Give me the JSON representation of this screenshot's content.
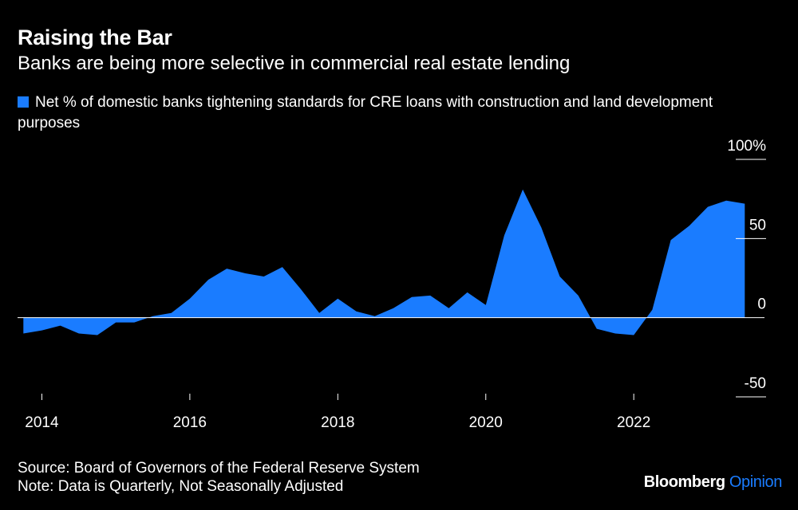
{
  "title": "Raising the Bar",
  "subtitle": "Banks are being more selective in commercial real estate lending",
  "legend": {
    "label": "Net % of domestic banks tightening standards for CRE loans with construction and land development purposes"
  },
  "footer": {
    "source": "Source: Board of Governors of the Federal Reserve System",
    "note": "Note: Data is Quarterly, Not Seasonally Adjusted"
  },
  "brand": {
    "name": "Bloomberg",
    "suffix": "Opinion"
  },
  "colors": {
    "series": "#1a7cff",
    "background": "#000000",
    "text": "#ffffff"
  },
  "chart_data": {
    "type": "area",
    "title": "Raising the Bar",
    "subtitle": "Banks are being more selective in commercial real estate lending",
    "xlabel": "",
    "ylabel": "",
    "y_unit_label": "100%",
    "ylim": [
      -50,
      100
    ],
    "y_ticks": [
      100,
      50,
      0,
      -50
    ],
    "y_tick_labels": [
      "100%",
      "50",
      "0",
      "-50"
    ],
    "x_ticks": [
      2014,
      2016,
      2018,
      2020,
      2022
    ],
    "x_tick_labels": [
      "2014",
      "2016",
      "2018",
      "2020",
      "2022"
    ],
    "xlim": [
      2013.65,
      2023.95
    ],
    "grid": false,
    "legend_position": "top-left",
    "series": [
      {
        "name": "Net % of domestic banks tightening standards for CRE loans with construction and land development purposes",
        "x": [
          "2013-10",
          "2014-01",
          "2014-04",
          "2014-07",
          "2014-10",
          "2015-01",
          "2015-04",
          "2015-07",
          "2015-10",
          "2016-01",
          "2016-04",
          "2016-07",
          "2016-10",
          "2017-01",
          "2017-04",
          "2017-07",
          "2017-10",
          "2018-01",
          "2018-04",
          "2018-07",
          "2018-10",
          "2019-01",
          "2019-04",
          "2019-07",
          "2019-10",
          "2020-01",
          "2020-04",
          "2020-07",
          "2020-10",
          "2021-01",
          "2021-04",
          "2021-07",
          "2021-10",
          "2022-01",
          "2022-04",
          "2022-07",
          "2022-10",
          "2023-01",
          "2023-04",
          "2023-07"
        ],
        "values": [
          -10,
          -8,
          -5,
          -10,
          -11,
          -3,
          -3,
          1,
          3,
          12,
          24,
          31,
          28,
          26,
          32,
          18,
          3,
          12,
          4,
          1,
          6,
          13,
          14,
          6,
          16,
          8,
          52,
          81,
          57,
          26,
          14,
          -7,
          -10,
          -11,
          5,
          49,
          58,
          70,
          74,
          72
        ]
      }
    ]
  }
}
